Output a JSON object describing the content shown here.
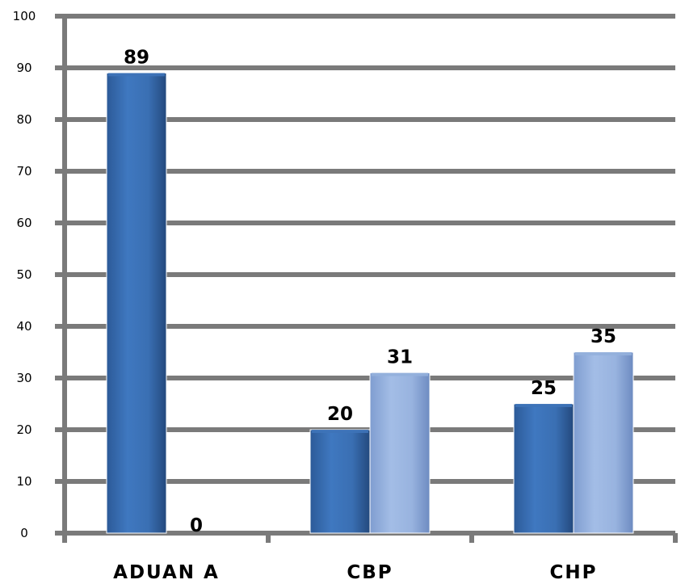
{
  "chart_data": {
    "type": "bar",
    "title": "",
    "xlabel": "",
    "ylabel": "",
    "categories": [
      "ADUAN A",
      "CBP",
      "CHP"
    ],
    "series": [
      {
        "values": [
          89,
          20,
          25
        ]
      },
      {
        "values": [
          0,
          31,
          35
        ]
      }
    ],
    "data_labels": [
      [
        "89",
        "20",
        "25"
      ],
      [
        "0",
        "31",
        "35"
      ]
    ],
    "y_ticks": [
      "0",
      "10",
      "20",
      "30",
      "40",
      "50",
      "60",
      "70",
      "80",
      "90",
      "100"
    ],
    "ylim": [
      0,
      100
    ],
    "grid": true,
    "legend": "none",
    "colors": {
      "series_1": "#3e73b8",
      "series_1_dark": "#2a5590",
      "series_2": "#94b0dc",
      "series_2_dark": "#6f8ec4",
      "gridline": "#7a7a7a",
      "axis": "#7a7a7a"
    }
  }
}
